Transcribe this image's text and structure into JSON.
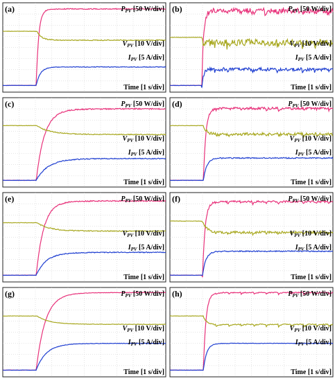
{
  "colors": {
    "power": "#e8317a",
    "voltage": "#a8a820",
    "current": "#1f3fd1",
    "grid": "#c8c8c8",
    "border": "#222222"
  },
  "chart_data": [
    {
      "panel": "(a)",
      "type": "line",
      "annotations": {
        "power_prefix": "P",
        "power_sub": "PV",
        "power_scale": " [50 W/div]",
        "voltage_prefix": "V",
        "voltage_sub": "PV",
        "voltage_scale": " [10 V/div]",
        "current_prefix": "I",
        "current_sub": "PV",
        "current_scale": " [5 A/div]",
        "time": "Time [1 s/div]"
      },
      "x_divisions": 10,
      "y_divisions": 8,
      "xlabel": "Time [1 s/div]",
      "series": [
        {
          "key": "power",
          "pre_div": 0.6,
          "post_div": 7.45,
          "step_time_div": 2.05,
          "rise_div": 0.15,
          "ripple": 0.04,
          "mid_div": 7.2,
          "dip": 0.0
        },
        {
          "key": "voltage",
          "pre_div": 5.45,
          "post_div": 4.65,
          "step_time_div": 2.1,
          "rise_div": 0.25,
          "ripple": 0.04,
          "mid_div": 4.75,
          "dip": 0.0
        },
        {
          "key": "current",
          "pre_div": 0.6,
          "post_div": 2.25,
          "step_time_div": 2.05,
          "rise_div": 0.25,
          "ripple": 0.03,
          "mid_div": 2.2,
          "dip": 0.0
        }
      ]
    },
    {
      "panel": "(b)",
      "type": "line",
      "annotations": {
        "power_prefix": "P",
        "power_sub": "PV",
        "power_scale": " [50 W/div]",
        "voltage_prefix": "V",
        "voltage_sub": "PV",
        "voltage_scale": " [10 V/div]",
        "current_prefix": "I",
        "current_sub": "PV",
        "current_scale": " [5 A/div]",
        "time": "Time [1 s/div]"
      },
      "x_divisions": 10,
      "y_divisions": 8,
      "xlabel": "Time [1 s/div]",
      "series": [
        {
          "key": "power",
          "pre_div": 0.6,
          "post_div": 7.3,
          "step_time_div": 1.95,
          "rise_div": 0.1,
          "ripple": 0.22,
          "mid_div": 6.8,
          "dip": 0.5
        },
        {
          "key": "voltage",
          "pre_div": 4.9,
          "post_div": 4.45,
          "step_time_div": 1.95,
          "rise_div": 0.1,
          "ripple": 0.3,
          "mid_div": 4.1,
          "dip": 0.4
        },
        {
          "key": "current",
          "pre_div": 0.6,
          "post_div": 2.05,
          "step_time_div": 1.95,
          "rise_div": 0.1,
          "ripple": 0.15,
          "mid_div": 1.9,
          "dip": 0.3
        }
      ]
    },
    {
      "panel": "(c)",
      "type": "line",
      "annotations": {
        "power_prefix": "P",
        "power_sub": "PV",
        "power_scale": " [50 W/div]",
        "voltage_prefix": "V",
        "voltage_sub": "PV",
        "voltage_scale": " [10 V/div]",
        "current_prefix": "I",
        "current_sub": "PV",
        "current_scale": " [5 A/div]",
        "time": "Time [1 s/div]"
      },
      "x_divisions": 10,
      "y_divisions": 8,
      "xlabel": "Time [1 s/div]",
      "series": [
        {
          "key": "power",
          "pre_div": 0.6,
          "post_div": 7.0,
          "step_time_div": 2.05,
          "rise_div": 0.5,
          "ripple": 0.05,
          "mid_div": 6.7,
          "dip": 0.0
        },
        {
          "key": "voltage",
          "pre_div": 5.5,
          "post_div": 4.7,
          "step_time_div": 2.05,
          "rise_div": 0.8,
          "ripple": 0.04,
          "mid_div": 4.8,
          "dip": 0.0
        },
        {
          "key": "current",
          "pre_div": 0.6,
          "post_div": 2.55,
          "step_time_div": 2.05,
          "rise_div": 0.7,
          "ripple": 0.04,
          "mid_div": 2.4,
          "dip": 0.0
        }
      ]
    },
    {
      "panel": "(d)",
      "type": "line",
      "annotations": {
        "power_prefix": "P",
        "power_sub": "PV",
        "power_scale": " [50 W/div]",
        "voltage_prefix": "V",
        "voltage_sub": "PV",
        "voltage_scale": " [10 V/div]",
        "current_prefix": "I",
        "current_sub": "PV",
        "current_scale": " [5 A/div]",
        "time": "Time [1 s/div]"
      },
      "x_divisions": 10,
      "y_divisions": 8,
      "xlabel": "Time [1 s/div]",
      "series": [
        {
          "key": "power",
          "pre_div": 0.6,
          "post_div": 7.05,
          "step_time_div": 2.05,
          "rise_div": 0.15,
          "ripple": 0.1,
          "mid_div": 6.8,
          "dip": 0.2
        },
        {
          "key": "voltage",
          "pre_div": 5.5,
          "post_div": 4.75,
          "step_time_div": 2.05,
          "rise_div": 0.3,
          "ripple": 0.12,
          "mid_div": 4.35,
          "dip": 0.2
        },
        {
          "key": "current",
          "pre_div": 0.6,
          "post_div": 2.6,
          "step_time_div": 2.05,
          "rise_div": 0.2,
          "ripple": 0.05,
          "mid_div": 2.5,
          "dip": 0.0
        }
      ]
    },
    {
      "panel": "(e)",
      "type": "line",
      "annotations": {
        "power_prefix": "P",
        "power_sub": "PV",
        "power_scale": " [50 W/div]",
        "voltage_prefix": "V",
        "voltage_sub": "PV",
        "voltage_scale": " [10 V/div]",
        "current_prefix": "I",
        "current_sub": "PV",
        "current_scale": " [5 A/div]",
        "time": "Time [1 s/div]"
      },
      "x_divisions": 10,
      "y_divisions": 8,
      "xlabel": "Time [1 s/div]",
      "series": [
        {
          "key": "power",
          "pre_div": 0.6,
          "post_div": 7.25,
          "step_time_div": 2.05,
          "rise_div": 0.45,
          "ripple": 0.05,
          "mid_div": 6.9,
          "dip": 0.0
        },
        {
          "key": "voltage",
          "pre_div": 5.3,
          "post_div": 4.55,
          "step_time_div": 2.1,
          "rise_div": 0.7,
          "ripple": 0.04,
          "mid_div": 4.65,
          "dip": 0.0
        },
        {
          "key": "current",
          "pre_div": 0.6,
          "post_div": 2.65,
          "step_time_div": 2.05,
          "rise_div": 0.6,
          "ripple": 0.04,
          "mid_div": 2.5,
          "dip": 0.0
        }
      ]
    },
    {
      "panel": "(f)",
      "type": "line",
      "annotations": {
        "power_prefix": "P",
        "power_sub": "PV",
        "power_scale": " [50 W/div]",
        "voltage_prefix": "V",
        "voltage_sub": "PV",
        "voltage_scale": " [10 V/div]",
        "current_prefix": "I",
        "current_sub": "PV",
        "current_scale": " [5 A/div]",
        "time": "Time [1 s/div]"
      },
      "x_divisions": 10,
      "y_divisions": 8,
      "xlabel": "Time [1 s/div]",
      "series": [
        {
          "key": "power",
          "pre_div": 0.6,
          "post_div": 7.2,
          "step_time_div": 2.0,
          "rise_div": 0.15,
          "ripple": 0.08,
          "mid_div": 6.85,
          "dip": 0.25
        },
        {
          "key": "voltage",
          "pre_div": 5.45,
          "post_div": 4.45,
          "step_time_div": 2.0,
          "rise_div": 0.3,
          "ripple": 0.1,
          "mid_div": 4.2,
          "dip": 0.2
        },
        {
          "key": "current",
          "pre_div": 0.6,
          "post_div": 2.75,
          "step_time_div": 2.0,
          "rise_div": 0.2,
          "ripple": 0.05,
          "mid_div": 2.6,
          "dip": 0.0
        }
      ]
    },
    {
      "panel": "(g)",
      "type": "line",
      "annotations": {
        "power_prefix": "P",
        "power_sub": "PV",
        "power_scale": " [50 W/div]",
        "voltage_prefix": "V",
        "voltage_sub": "PV",
        "voltage_scale": " [10 V/div]",
        "current_prefix": "I",
        "current_sub": "PV",
        "current_scale": " [5 A/div]",
        "time": "Time [1 s/div]"
      },
      "x_divisions": 10,
      "y_divisions": 8,
      "xlabel": "Time [1 s/div]",
      "series": [
        {
          "key": "power",
          "pre_div": 0.6,
          "post_div": 7.55,
          "step_time_div": 2.05,
          "rise_div": 0.55,
          "ripple": 0.02,
          "mid_div": 7.2,
          "dip": 0.0
        },
        {
          "key": "voltage",
          "pre_div": 5.45,
          "post_div": 4.7,
          "step_time_div": 2.1,
          "rise_div": 0.7,
          "ripple": 0.02,
          "mid_div": 4.8,
          "dip": 0.0
        },
        {
          "key": "current",
          "pre_div": 0.6,
          "post_div": 3.0,
          "step_time_div": 2.05,
          "rise_div": 0.6,
          "ripple": 0.02,
          "mid_div": 2.85,
          "dip": 0.0
        }
      ]
    },
    {
      "panel": "(h)",
      "type": "line",
      "annotations": {
        "power_prefix": "P",
        "power_sub": "PV",
        "power_scale": " [50 W/div]",
        "voltage_prefix": "V",
        "voltage_sub": "PV",
        "voltage_scale": " [10 V/div]",
        "current_prefix": "I",
        "current_sub": "PV",
        "current_scale": " [5 A/div]",
        "time": "Time [1 s/div]"
      },
      "x_divisions": 10,
      "y_divisions": 8,
      "xlabel": "Time [1 s/div]",
      "series": [
        {
          "key": "power",
          "pre_div": 0.6,
          "post_div": 7.55,
          "step_time_div": 2.05,
          "rise_div": 0.15,
          "ripple": 0.04,
          "mid_div": 7.0,
          "dip": 0.2
        },
        {
          "key": "voltage",
          "pre_div": 5.45,
          "post_div": 4.7,
          "step_time_div": 2.05,
          "rise_div": 0.3,
          "ripple": 0.04,
          "mid_div": 4.3,
          "dip": 0.25
        },
        {
          "key": "current",
          "pre_div": 0.6,
          "post_div": 3.0,
          "step_time_div": 2.05,
          "rise_div": 0.2,
          "ripple": 0.02,
          "mid_div": 2.9,
          "dip": 0.0
        }
      ]
    }
  ]
}
